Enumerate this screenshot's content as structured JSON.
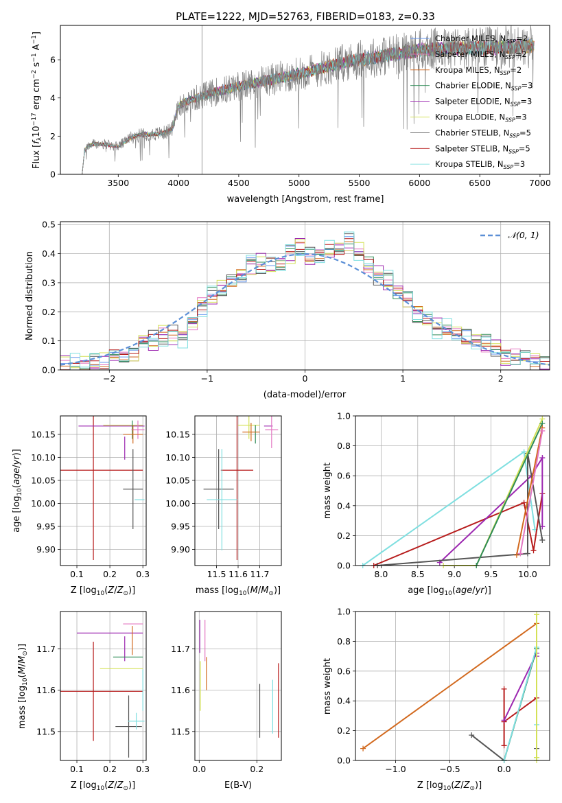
{
  "colors": {
    "chabrier_miles": "#6495ed",
    "salpeter_miles": "#e377c2",
    "kroupa_miles": "#d2691e",
    "chabrier_elodie": "#2e8b57",
    "salpeter_elodie": "#9c27b0",
    "kroupa_elodie": "#d4e157",
    "chabrier_stelib": "#555555",
    "salpeter_stelib": "#b71c1c",
    "kroupa_stelib": "#7fdfe0",
    "gaussian": "#5b8fd6"
  },
  "chart_data": [
    {
      "type": "line",
      "title": "PLATE=1222, MJD=52763, FIBERID=0183, z=0.33",
      "xlabel": "wavelength [Angstrom, rest frame]",
      "ylabel": "Flux [f_λ 10^-17 erg cm^-2 s^-1 A^-1]",
      "xlim": [
        3020,
        7080
      ],
      "ylim": [
        0,
        7.8
      ],
      "xticks": [
        3500,
        4000,
        4500,
        5000,
        5500,
        6000,
        6500,
        7000
      ],
      "yticks": [
        0,
        2,
        4,
        6
      ],
      "data_range": [
        3200,
        6950
      ],
      "legend_position": "upper right",
      "legend": [
        {
          "name": "Chabrier MILES, N_SSP=2",
          "color_key": "chabrier_miles"
        },
        {
          "name": "Salpeter MILES, N_SSP=2",
          "color_key": "salpeter_miles"
        },
        {
          "name": "Kroupa MILES, N_SSP=2",
          "color_key": "kroupa_miles"
        },
        {
          "name": "Chabrier ELODIE, N_SSP=3",
          "color_key": "chabrier_elodie"
        },
        {
          "name": "Salpeter ELODIE, N_SSP=3",
          "color_key": "salpeter_elodie"
        },
        {
          "name": "Kroupa ELODIE, N_SSP=3",
          "color_key": "kroupa_elodie"
        },
        {
          "name": "Chabrier STELIB, N_SSP=5",
          "color_key": "chabrier_stelib"
        },
        {
          "name": "Salpeter STELIB, N_SSP=5",
          "color_key": "salpeter_stelib"
        },
        {
          "name": "Kroupa STELIB, N_SSP=3",
          "color_key": "kroupa_stelib"
        }
      ],
      "spectrum_anchors": [
        {
          "x": 3200,
          "y": 0.0
        },
        {
          "x": 3220,
          "y": 1.2
        },
        {
          "x": 3240,
          "y": 1.45
        },
        {
          "x": 3300,
          "y": 1.6
        },
        {
          "x": 3400,
          "y": 1.55
        },
        {
          "x": 3500,
          "y": 1.45
        },
        {
          "x": 3600,
          "y": 1.9
        },
        {
          "x": 3700,
          "y": 2.1
        },
        {
          "x": 3800,
          "y": 2.1
        },
        {
          "x": 3900,
          "y": 2.2
        },
        {
          "x": 3950,
          "y": 2.4
        },
        {
          "x": 4000,
          "y": 3.6
        },
        {
          "x": 4100,
          "y": 3.9
        },
        {
          "x": 4300,
          "y": 4.3
        },
        {
          "x": 4500,
          "y": 4.6
        },
        {
          "x": 4800,
          "y": 5.0
        },
        {
          "x": 5100,
          "y": 5.4
        },
        {
          "x": 5400,
          "y": 5.9
        },
        {
          "x": 5700,
          "y": 6.2
        },
        {
          "x": 6000,
          "y": 6.5
        },
        {
          "x": 6300,
          "y": 6.6
        },
        {
          "x": 6600,
          "y": 6.6
        },
        {
          "x": 6950,
          "y": 6.75
        }
      ]
    },
    {
      "type": "line",
      "xlabel": "(data-model)/error",
      "ylabel": "Normed distribution",
      "xlim": [
        -2.5,
        2.5
      ],
      "ylim": [
        0,
        0.51
      ],
      "xticks": [
        -2,
        -1,
        0,
        1,
        2
      ],
      "yticks": [
        0.0,
        0.1,
        0.2,
        0.3,
        0.4,
        0.5
      ],
      "legend_position": "upper right",
      "gaussian_label": "𝒩(0, 1)",
      "bin_width": 0.1,
      "bin_start": -2.5,
      "histogram_mean_values": [
        0.015,
        0.015,
        0.015,
        0.02,
        0.02,
        0.045,
        0.05,
        0.06,
        0.095,
        0.1,
        0.12,
        0.12,
        0.12,
        0.16,
        0.22,
        0.25,
        0.27,
        0.29,
        0.33,
        0.36,
        0.37,
        0.36,
        0.37,
        0.4,
        0.42,
        0.39,
        0.4,
        0.41,
        0.42,
        0.43,
        0.4,
        0.36,
        0.33,
        0.3,
        0.27,
        0.24,
        0.2,
        0.16,
        0.15,
        0.14,
        0.12,
        0.11,
        0.1,
        0.09,
        0.07,
        0.05,
        0.045,
        0.04,
        0.03,
        0.025
      ],
      "series_offsets": [
        {
          "name": "Chabrier MILES",
          "color_key": "chabrier_miles",
          "offset": 0.01
        },
        {
          "name": "Salpeter MILES",
          "color_key": "salpeter_miles",
          "offset": -0.01
        },
        {
          "name": "Kroupa MILES",
          "color_key": "kroupa_miles",
          "offset": 0.0
        },
        {
          "name": "Chabrier ELODIE",
          "color_key": "chabrier_elodie",
          "offset": 0.015
        },
        {
          "name": "Salpeter ELODIE",
          "color_key": "salpeter_elodie",
          "offset": -0.015
        },
        {
          "name": "Kroupa ELODIE",
          "color_key": "kroupa_elodie",
          "offset": -0.02
        },
        {
          "name": "Chabrier STELIB",
          "color_key": "chabrier_stelib",
          "offset": 0.02
        },
        {
          "name": "Salpeter STELIB",
          "color_key": "salpeter_stelib",
          "offset": 0.005
        },
        {
          "name": "Kroupa STELIB",
          "color_key": "kroupa_stelib",
          "offset": 0.025
        }
      ]
    },
    {
      "type": "scatter",
      "xlabel": "Z [log10(Z/Z⊙)]",
      "ylabel": "age  [log10(age/yr)]",
      "xlim": [
        0.05,
        0.31
      ],
      "ylim": [
        9.865,
        10.19
      ],
      "xticks": [
        0.1,
        0.2,
        0.3
      ],
      "yticks": [
        9.9,
        9.95,
        10.0,
        10.05,
        10.1,
        10.15
      ],
      "points": [
        {
          "color_key": "salpeter_stelib",
          "x": 0.15,
          "y": 10.072,
          "xerr": 0.15,
          "yerr": 0.195
        },
        {
          "color_key": "chabrier_stelib",
          "x": 0.27,
          "y": 10.031,
          "xerr": 0.03,
          "yerr": 0.087
        },
        {
          "color_key": "kroupa_stelib",
          "x": 0.29,
          "y": 10.008,
          "xerr": 0.015,
          "yerr": 0.0
        },
        {
          "color_key": "salpeter_elodie",
          "x": 0.205,
          "y": 10.168,
          "xerr": 0.1,
          "yerr": 0.0
        },
        {
          "color_key": "salpeter_elodie",
          "x": 0.245,
          "y": 10.12,
          "xerr": 0.0,
          "yerr": 0.025
        },
        {
          "color_key": "kroupa_elodie",
          "x": 0.24,
          "y": 10.17,
          "xerr": 0.06,
          "yerr": 0.0
        },
        {
          "color_key": "chabrier_elodie",
          "x": 0.268,
          "y": 10.16,
          "xerr": 0.0,
          "yerr": 0.02
        },
        {
          "color_key": "salpeter_miles",
          "x": 0.285,
          "y": 10.16,
          "xerr": 0.02,
          "yerr": 0.02
        },
        {
          "color_key": "kroupa_miles",
          "x": 0.27,
          "y": 10.15,
          "xerr": 0.03,
          "yerr": 0.02
        }
      ]
    },
    {
      "type": "scatter",
      "xlabel": "mass [log10(M/M⊙)]",
      "ylabel": "",
      "xlim": [
        11.4,
        11.8
      ],
      "ylim": [
        9.865,
        10.19
      ],
      "xticks": [
        11.5,
        11.6,
        11.7
      ],
      "yticks": [
        9.9,
        9.95,
        10.0,
        10.05,
        10.1,
        10.15
      ],
      "points": [
        {
          "color_key": "salpeter_stelib",
          "x": 11.595,
          "y": 10.072,
          "xerr": 0.075,
          "yerr": 0.195
        },
        {
          "color_key": "chabrier_stelib",
          "x": 11.51,
          "y": 10.031,
          "xerr": 0.07,
          "yerr": 0.087
        },
        {
          "color_key": "kroupa_stelib",
          "x": 11.525,
          "y": 10.008,
          "xerr": 0.07,
          "yerr": 0.11
        },
        {
          "color_key": "salpeter_elodie",
          "x": 11.74,
          "y": 10.168,
          "xerr": 0.02,
          "yerr": 0.0
        },
        {
          "color_key": "kroupa_elodie",
          "x": 11.65,
          "y": 10.17,
          "xerr": 0.05,
          "yerr": 0.03
        },
        {
          "color_key": "chabrier_elodie",
          "x": 11.68,
          "y": 10.15,
          "xerr": 0.0,
          "yerr": 0.02
        },
        {
          "color_key": "salpeter_miles",
          "x": 11.755,
          "y": 10.16,
          "xerr": 0.03,
          "yerr": 0.04
        },
        {
          "color_key": "kroupa_miles",
          "x": 11.66,
          "y": 10.155,
          "xerr": 0.04,
          "yerr": 0.02
        }
      ]
    },
    {
      "type": "line",
      "xlabel": "age  [log10(age/yr)]",
      "ylabel": "mass weight",
      "xlim": [
        7.65,
        10.3
      ],
      "ylim": [
        0,
        1.0
      ],
      "xticks": [
        8.0,
        8.5,
        9.0,
        9.5,
        10.0
      ],
      "yticks": [
        0.0,
        0.2,
        0.4,
        0.6,
        0.8,
        1.0
      ],
      "series": [
        {
          "color_key": "kroupa_stelib",
          "x": [
            7.75,
            9.95,
            10.1
          ],
          "y": [
            0.0,
            0.76,
            0.24
          ]
        },
        {
          "color_key": "salpeter_stelib",
          "x": [
            7.9,
            9.95,
            10.08,
            10.2
          ],
          "y": [
            0.0,
            0.42,
            0.1,
            0.48
          ]
        },
        {
          "color_key": "salpeter_elodie",
          "x": [
            8.8,
            10.05,
            10.2,
            10.2
          ],
          "y": [
            0.02,
            0.6,
            0.72,
            0.26
          ]
        },
        {
          "color_key": "chabrier_stelib",
          "x": [
            7.95,
            10.0,
            10.0,
            10.2
          ],
          "y": [
            0.0,
            0.08,
            0.75,
            0.17
          ]
        },
        {
          "color_key": "kroupa_elodie",
          "x": [
            8.85,
            9.3,
            10.2
          ],
          "y": [
            0.0,
            0.0,
            0.98
          ]
        },
        {
          "color_key": "chabrier_elodie",
          "x": [
            9.3,
            10.2
          ],
          "y": [
            0.0,
            0.95
          ]
        },
        {
          "color_key": "kroupa_miles",
          "x": [
            9.85,
            10.2
          ],
          "y": [
            0.07,
            0.92
          ]
        },
        {
          "color_key": "salpeter_miles",
          "x": [
            9.9,
            10.2
          ],
          "y": [
            0.08,
            0.9
          ]
        }
      ]
    },
    {
      "type": "scatter",
      "xlabel": "Z [log10(Z/Z⊙)]",
      "ylabel": "mass [log10(M/M⊙)]",
      "xlim": [
        0.05,
        0.31
      ],
      "ylim": [
        11.43,
        11.79
      ],
      "xticks": [
        0.1,
        0.2,
        0.3
      ],
      "yticks": [
        11.5,
        11.6,
        11.7
      ],
      "points": [
        {
          "color_key": "salpeter_stelib",
          "x": 0.15,
          "y": 11.597,
          "xerr": 0.15,
          "yerr": 0.12
        },
        {
          "color_key": "chabrier_stelib",
          "x": 0.257,
          "y": 11.512,
          "xerr": 0.04,
          "yerr": 0.075
        },
        {
          "color_key": "kroupa_stelib",
          "x": 0.28,
          "y": 11.525,
          "xerr": 0.025,
          "yerr": 0.02
        },
        {
          "color_key": "salpeter_elodie",
          "x": 0.2,
          "y": 11.738,
          "xerr": 0.1,
          "yerr": 0.0
        },
        {
          "color_key": "salpeter_elodie",
          "x": 0.245,
          "y": 11.7,
          "xerr": 0.0,
          "yerr": 0.03
        },
        {
          "color_key": "kroupa_elodie",
          "x": 0.235,
          "y": 11.652,
          "xerr": 0.065,
          "yerr": 0.0
        },
        {
          "color_key": "chabrier_elodie",
          "x": 0.255,
          "y": 11.68,
          "xerr": 0.045,
          "yerr": 0.0
        },
        {
          "color_key": "salpeter_miles",
          "x": 0.27,
          "y": 11.76,
          "xerr": 0.03,
          "yerr": 0.0
        },
        {
          "color_key": "kroupa_miles",
          "x": 0.268,
          "y": 11.72,
          "xerr": 0.0,
          "yerr": 0.035
        },
        {
          "color_key": "kroupa_stelib",
          "x": 0.3,
          "y": 11.6,
          "xerr": 0.0,
          "yerr": 0.05
        }
      ]
    },
    {
      "type": "scatter",
      "xlabel": "E(B-V)",
      "ylabel": "",
      "xlim": [
        -0.015,
        0.285
      ],
      "ylim": [
        11.43,
        11.79
      ],
      "xticks": [
        0.0,
        0.2
      ],
      "yticks": [
        11.5,
        11.6,
        11.7
      ],
      "points": [
        {
          "color_key": "salpeter_elodie",
          "x": 0.002,
          "y": 11.73,
          "xerr": 0.0,
          "yerr": 0.04
        },
        {
          "color_key": "kroupa_elodie",
          "x": 0.004,
          "y": 11.61,
          "xerr": 0.0,
          "yerr": 0.06
        },
        {
          "color_key": "salpeter_miles",
          "x": 0.02,
          "y": 11.72,
          "xerr": 0.0,
          "yerr": 0.05
        },
        {
          "color_key": "kroupa_miles",
          "x": 0.025,
          "y": 11.64,
          "xerr": 0.0,
          "yerr": 0.04
        },
        {
          "color_key": "chabrier_stelib",
          "x": 0.21,
          "y": 11.55,
          "xerr": 0.0,
          "yerr": 0.065
        },
        {
          "color_key": "kroupa_stelib",
          "x": 0.255,
          "y": 11.56,
          "xerr": 0.0,
          "yerr": 0.065
        },
        {
          "color_key": "salpeter_stelib",
          "x": 0.275,
          "y": 11.575,
          "xerr": 0.0,
          "yerr": 0.09
        }
      ]
    },
    {
      "type": "line",
      "xlabel": "Z [log10(Z/Z⊙)]",
      "ylabel": "mass weight",
      "xlim": [
        -1.37,
        0.42
      ],
      "ylim": [
        0,
        1.0
      ],
      "xticks": [
        -1.0,
        -0.5,
        0.0
      ],
      "yticks": [
        0.0,
        0.2,
        0.4,
        0.6,
        0.8,
        1.0
      ],
      "series": [
        {
          "color_key": "kroupa_miles",
          "x": [
            -1.3,
            0.3
          ],
          "y": [
            0.08,
            0.92
          ]
        },
        {
          "color_key": "chabrier_stelib",
          "x": [
            -0.3,
            0.0,
            0.3,
            0.3
          ],
          "y": [
            0.17,
            0.0,
            0.75,
            0.08
          ]
        },
        {
          "color_key": "salpeter_stelib",
          "x": [
            0.0,
            0.0,
            0.0,
            0.3
          ],
          "y": [
            0.48,
            0.1,
            0.26,
            0.42
          ]
        },
        {
          "color_key": "salpeter_elodie",
          "x": [
            0.0,
            0.3,
            0.3
          ],
          "y": [
            0.27,
            0.72,
            0.7
          ]
        },
        {
          "color_key": "chabrier_elodie",
          "x": [
            0.0,
            0.3,
            0.3
          ],
          "y": [
            0.0,
            0.75,
            0.02
          ]
        },
        {
          "color_key": "kroupa_stelib",
          "x": [
            0.0,
            0.3,
            0.3
          ],
          "y": [
            0.0,
            0.76,
            0.24
          ]
        },
        {
          "color_key": "kroupa_elodie",
          "x": [
            0.3,
            0.3,
            0.3
          ],
          "y": [
            0.0,
            0.98,
            0.02
          ]
        }
      ]
    }
  ]
}
